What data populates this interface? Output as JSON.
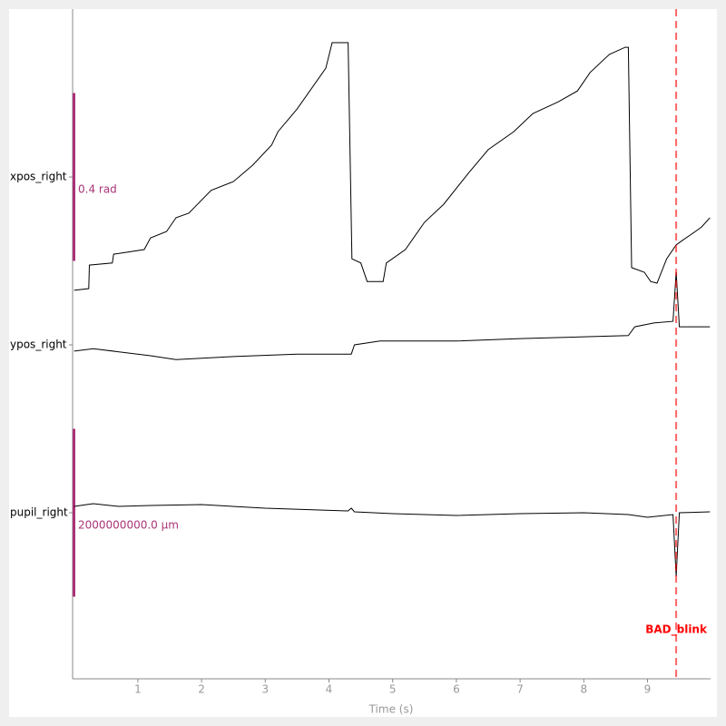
{
  "chart_data": {
    "type": "line",
    "xlabel": "Time (s)",
    "xlim": [
      0,
      9.99
    ],
    "xticks": [
      1,
      2,
      3,
      4,
      5,
      6,
      7,
      8,
      9
    ],
    "scalebar_color": "#aa3377",
    "series": [
      {
        "name": "xpos_right",
        "color": "#000000",
        "scalebar": {
          "value": 0.4,
          "label": "0.4 rad"
        },
        "x": [
          0,
          0.23,
          0.24,
          0.6,
          0.62,
          1.1,
          1.2,
          1.45,
          1.6,
          1.8,
          2.15,
          2.5,
          2.8,
          3.1,
          3.2,
          3.5,
          3.95,
          4.05,
          4.3,
          4.36,
          4.5,
          4.6,
          4.85,
          4.9,
          5.2,
          5.5,
          5.8,
          6.2,
          6.5,
          6.9,
          7.2,
          7.6,
          7.9,
          8.1,
          8.4,
          8.65,
          8.7,
          8.75,
          8.95,
          9.05,
          9.15,
          9.3,
          9.45,
          9.55,
          9.75,
          9.85,
          9.98
        ],
        "values": [
          -0.27,
          -0.266,
          -0.21,
          -0.205,
          -0.184,
          -0.173,
          -0.145,
          -0.13,
          -0.097,
          -0.086,
          -0.032,
          -0.011,
          0.028,
          0.076,
          0.108,
          0.162,
          0.259,
          0.32,
          0.32,
          -0.195,
          -0.205,
          -0.249,
          -0.249,
          -0.205,
          -0.173,
          -0.108,
          -0.065,
          0.011,
          0.065,
          0.108,
          0.151,
          0.179,
          0.205,
          0.249,
          0.292,
          0.309,
          0.309,
          -0.216,
          -0.227,
          -0.249,
          -0.253,
          -0.195,
          -0.162,
          -0.151,
          -0.13,
          -0.119,
          -0.097
        ]
      },
      {
        "name": "ypos_right",
        "color": "#000000",
        "x": [
          0,
          0.3,
          1.2,
          1.6,
          2.5,
          3.5,
          4.35,
          4.4,
          4.8,
          6,
          7,
          8.7,
          8.8,
          9.1,
          9.4,
          9.45,
          9.5,
          9.98
        ],
        "values": [
          -0.015,
          -0.009,
          -0.026,
          -0.035,
          -0.028,
          -0.022,
          -0.022,
          0,
          0.009,
          0.009,
          0.015,
          0.022,
          0.043,
          0.052,
          0.056,
          0.173,
          0.043,
          0.043
        ]
      },
      {
        "name": "pupil_right",
        "color": "#000000",
        "scalebar": {
          "value": 2000000000,
          "label": "2000000000.0 µm"
        },
        "x": [
          0,
          0.3,
          0.7,
          1.2,
          2,
          3,
          4.3,
          4.35,
          4.4,
          5,
          6,
          7,
          8,
          8.7,
          9,
          9.4,
          9.45,
          9.5,
          9.98
        ],
        "values": [
          76000000,
          108000000,
          76000000,
          86000000,
          97000000,
          54000000,
          22000000,
          54000000,
          11000000,
          -11000000,
          -32000000,
          -11000000,
          0,
          -22000000,
          -54000000,
          -22000000,
          -757000000,
          0,
          11000000
        ]
      }
    ],
    "annotations": [
      {
        "label": "BAD_blink",
        "x": 9.45,
        "color": "#ff0000"
      }
    ]
  }
}
